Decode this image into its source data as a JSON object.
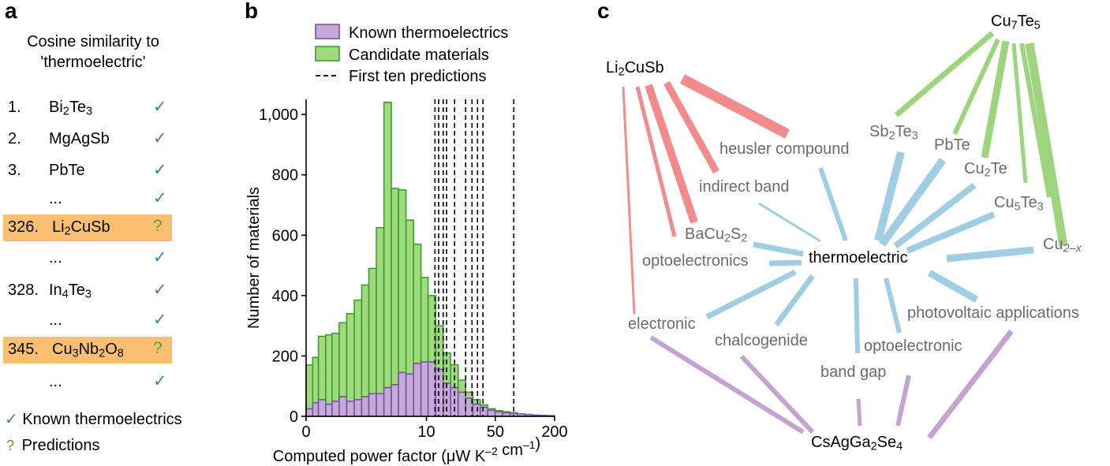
{
  "panel_a": {
    "letter": "a",
    "title_line1": "Cosine similarity to",
    "title_line2": "'thermoelectric'",
    "rows": [
      {
        "rank": "1.",
        "name": "Bi",
        "sub1": "2",
        "mid1": "Te",
        "sub2": "3",
        "mid2": "",
        "sub3": "",
        "mark": "✓"
      },
      {
        "rank": "2.",
        "name": "MgAgSb",
        "sub1": "",
        "mid1": "",
        "sub2": "",
        "mid2": "",
        "sub3": "",
        "mark": "✓"
      },
      {
        "rank": "3.",
        "name": "PbTe",
        "sub1": "",
        "mid1": "",
        "sub2": "",
        "mid2": "",
        "sub3": "",
        "mark": "✓"
      },
      {
        "rank": "",
        "name": "...",
        "sub1": "",
        "mid1": "",
        "sub2": "",
        "mid2": "",
        "sub3": "",
        "mark": "✓"
      },
      {
        "rank": "326.",
        "name": "Li",
        "sub1": "2",
        "mid1": "CuSb",
        "sub2": "",
        "mid2": "",
        "sub3": "",
        "mark": "?"
      },
      {
        "rank": "",
        "name": "...",
        "sub1": "",
        "mid1": "",
        "sub2": "",
        "mid2": "",
        "sub3": "",
        "mark": "✓"
      },
      {
        "rank": "328.",
        "name": "In",
        "sub1": "4",
        "mid1": "Te",
        "sub2": "3",
        "mid2": "",
        "sub3": "",
        "mark": "✓"
      },
      {
        "rank": "",
        "name": "...",
        "sub1": "",
        "mid1": "",
        "sub2": "",
        "mid2": "",
        "sub3": "",
        "mark": "✓"
      },
      {
        "rank": "345.",
        "name": "Cu",
        "sub1": "3",
        "mid1": "Nb",
        "sub2": "2",
        "mid2": "O",
        "sub3": "8",
        "mark": "?"
      },
      {
        "rank": "",
        "name": "...",
        "sub1": "",
        "mid1": "",
        "sub2": "",
        "mid2": "",
        "sub3": "",
        "mark": "✓"
      }
    ],
    "legend_known_mark": "✓",
    "legend_known": "Known thermoelectrics",
    "legend_pred_mark": "?",
    "legend_pred": "Predictions"
  },
  "panel_b": {
    "letter": "b"
  },
  "chart_data": {
    "type": "bar",
    "xlabel_main": "Computed power factor (μW K",
    "xlabel_exp1": "–2",
    "xlabel_mid": " cm",
    "xlabel_exp2": "–1",
    "xlabel_end": ")",
    "ylabel": "Number of materials",
    "x_scale": "log",
    "xlim": [
      0.6,
      200
    ],
    "ylim": [
      0,
      1050
    ],
    "x_ticks": [
      {
        "value": 0.6,
        "label": "0"
      },
      {
        "value": 10,
        "label": "10"
      },
      {
        "value": 50,
        "label": "50"
      },
      {
        "value": 200,
        "label": "200"
      }
    ],
    "y_ticks": [
      {
        "value": 0,
        "label": "0"
      },
      {
        "value": 200,
        "label": "200"
      },
      {
        "value": 400,
        "label": "400"
      },
      {
        "value": 600,
        "label": "600"
      },
      {
        "value": 800,
        "label": "800"
      },
      {
        "value": 1000,
        "label": "1,000"
      }
    ],
    "bin_edges": [
      0.6,
      0.7,
      0.8,
      0.95,
      1.1,
      1.3,
      1.55,
      1.85,
      2.2,
      2.6,
      3.1,
      3.7,
      4.4,
      5.2,
      6.2,
      7.4,
      8.8,
      10.4,
      12.4,
      14.8,
      17.6,
      21,
      25,
      29.6,
      35.2,
      41.8,
      49.8,
      59.2,
      70.4,
      83.8,
      99.6,
      118.4,
      140.8,
      167.4,
      200
    ],
    "series": [
      {
        "name": "Known thermoelectrics",
        "color": "#c6a9d8",
        "edge": "#7b52a1",
        "values": [
          25,
          45,
          55,
          40,
          50,
          65,
          50,
          55,
          65,
          75,
          75,
          95,
          105,
          145,
          140,
          175,
          180,
          180,
          155,
          110,
          95,
          80,
          60,
          40,
          30,
          20,
          15,
          12,
          10,
          8,
          6,
          4,
          3,
          2
        ]
      },
      {
        "name": "Candidate materials",
        "color": "#9fdb7a",
        "edge": "#3e9c35",
        "values": [
          145,
          150,
          210,
          230,
          225,
          245,
          290,
          330,
          370,
          415,
          550,
          945,
          650,
          605,
          510,
          395,
          280,
          220,
          145,
          100,
          75,
          40,
          20,
          15,
          8,
          5,
          4,
          3,
          2,
          0,
          0,
          0,
          0,
          0
        ]
      }
    ],
    "first_ten_predictions_label": "First ten predictions",
    "prediction_lines_x": [
      12.2,
      13.3,
      14.8,
      16.0,
      19.3,
      25.0,
      29.0,
      33.0,
      37.5,
      77.0
    ],
    "legend_position": "top"
  },
  "panel_c": {
    "letter": "c",
    "center": "thermoelectric",
    "colors": {
      "red": "#f28b8b",
      "green": "#9fd47f",
      "blue": "#9fcde3",
      "purple": "#c4a3d2"
    },
    "words": {
      "li2cusb": {
        "a": "Li",
        "s1": "2",
        "b": "CuSb"
      },
      "cu7te5": {
        "a": "Cu",
        "s1": "7",
        "b": "Te",
        "s2": "5"
      },
      "sb2te3": {
        "a": "Sb",
        "s1": "2",
        "b": "Te",
        "s2": "3"
      },
      "pbte": "PbTe",
      "cu2te": {
        "a": "Cu",
        "s1": "2",
        "b": "Te"
      },
      "cu5te3": {
        "a": "Cu",
        "s1": "5",
        "b": "Te",
        "s2": "3"
      },
      "cu2x": {
        "a": "Cu",
        "s1": "2–x"
      },
      "heusler": "heusler compound",
      "indirect": "indirect band",
      "bacu2s2": {
        "a": "BaCu",
        "s1": "2",
        "b": "S",
        "s2": "2"
      },
      "optoelectronics": "optoelectronics",
      "electronic": "electronic",
      "chalcogenide": "chalcogenide",
      "bandgap": "band gap",
      "optoelectronic": "optoelectronic",
      "photovoltaic": "photovoltaic applications",
      "csagga2se4": {
        "a": "CsAgGa",
        "s1": "2",
        "b": "Se",
        "s2": "4"
      }
    }
  }
}
